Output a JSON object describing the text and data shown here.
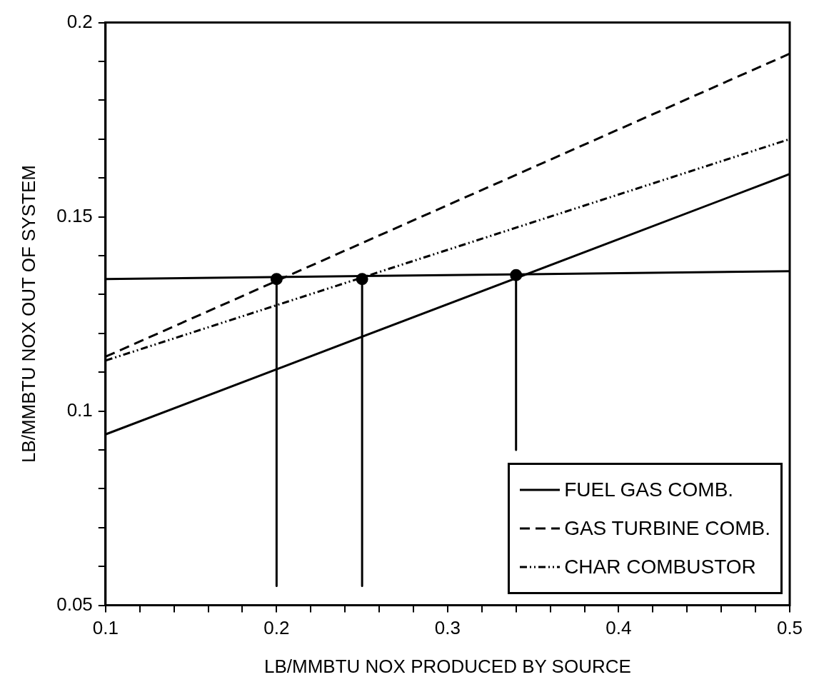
{
  "chart_data": {
    "type": "line",
    "xlabel": "LB/MMBTU NOX PRODUCED BY SOURCE",
    "ylabel": "LB/MMBTU NOX OUT OF SYSTEM",
    "xlim": [
      0.1,
      0.5
    ],
    "ylim": [
      0.05,
      0.2
    ],
    "xticks": [
      0.1,
      {
        "value": 0.12,
        "label": null
      },
      {
        "value": 0.14,
        "label": null
      },
      {
        "value": 0.16,
        "label": null
      },
      {
        "value": 0.18,
        "label": null
      },
      0.2,
      {
        "value": 0.22,
        "label": null
      },
      {
        "value": 0.24,
        "label": null
      },
      {
        "value": 0.26,
        "label": null
      },
      {
        "value": 0.28,
        "label": null
      },
      0.3,
      {
        "value": 0.32,
        "label": null
      },
      {
        "value": 0.34,
        "label": null
      },
      {
        "value": 0.36,
        "label": null
      },
      {
        "value": 0.38,
        "label": null
      },
      0.4,
      {
        "value": 0.42,
        "label": null
      },
      {
        "value": 0.44,
        "label": null
      },
      {
        "value": 0.46,
        "label": null
      },
      {
        "value": 0.48,
        "label": null
      },
      0.5
    ],
    "yticks": [
      0.05,
      {
        "value": 0.06,
        "label": null
      },
      {
        "value": 0.07,
        "label": null
      },
      {
        "value": 0.08,
        "label": null
      },
      {
        "value": 0.09,
        "label": null
      },
      0.1,
      {
        "value": 0.11,
        "label": null
      },
      {
        "value": 0.12,
        "label": null
      },
      {
        "value": 0.13,
        "label": null
      },
      {
        "value": 0.14,
        "label": null
      },
      0.15,
      {
        "value": 0.16,
        "label": null
      },
      {
        "value": 0.17,
        "label": null
      },
      {
        "value": 0.18,
        "label": null
      },
      {
        "value": 0.19,
        "label": null
      },
      0.2
    ],
    "legend": "bottom right",
    "marker": "none",
    "series": [
      {
        "name": "FUEL GAS COMB.",
        "color": "#000000",
        "line_style": "solid",
        "x": [
          0.1,
          0.5
        ],
        "values": [
          0.094,
          0.161
        ]
      },
      {
        "name": "GAS TURBINE COMB.",
        "color": "#000000",
        "line_style": "dashed",
        "x": [
          0.1,
          0.5
        ],
        "values": [
          0.114,
          0.192
        ]
      },
      {
        "name": "CHAR COMBUSTOR",
        "color": "#000000",
        "line_style": "dotted",
        "x": [
          0.1,
          0.5
        ],
        "values": [
          0.113,
          0.17
        ]
      },
      {
        "color": "#000000",
        "line_style": "solid",
        "x": [
          0.1,
          0.5
        ],
        "values": [
          0.134,
          0.136
        ]
      },
      {
        "color": "#000000",
        "line_style": "solid",
        "x": [
          0.2,
          0.2
        ],
        "values": [
          0.134,
          0.055
        ]
      },
      {
        "color": "#000000",
        "line_style": "solid",
        "x": [
          0.25,
          0.25
        ],
        "values": [
          0.134,
          0.055
        ]
      },
      {
        "color": "#000000",
        "line_style": "solid",
        "x": [
          0.34,
          0.34
        ],
        "values": [
          0.135,
          0.09
        ]
      },
      {
        "type": "scatter",
        "marker": "circle",
        "color": "#000000",
        "x": [
          0.2,
          0.25,
          0.34
        ],
        "values": [
          0.134,
          0.134,
          0.135
        ]
      }
    ]
  }
}
